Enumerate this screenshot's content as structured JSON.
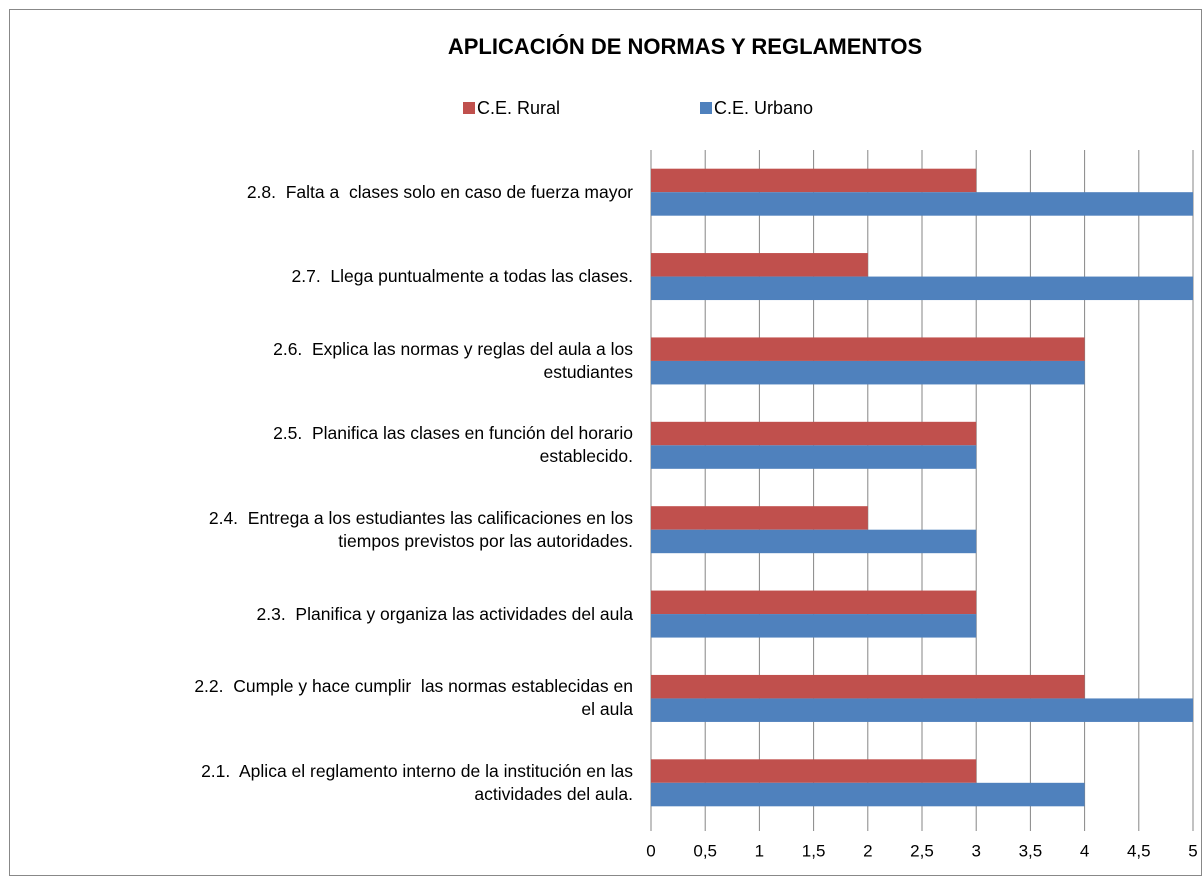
{
  "chart_data": {
    "type": "hbar",
    "title": "APLICACIÓN DE NORMAS Y REGLAMENTOS",
    "categories": [
      "2.1.  Aplica el reglamento interno de la institución en las actividades del aula.",
      "2.2.  Cumple y hace cumplir  las normas establecidas en el aula",
      "2.3.  Planifica y organiza las actividades del aula",
      "2.4.  Entrega a los estudiantes las calificaciones en los tiempos previstos por las autoridades.",
      "2.5.  Planifica las clases en función del horario establecido.",
      "2.6.  Explica las normas y reglas del aula a los estudiantes",
      "2.7.  Llega puntualmente a todas las clases.",
      "2.8.  Falta a  clases solo en caso de fuerza mayor"
    ],
    "series": [
      {
        "name": "C.E. Rural",
        "color": "#c0504d",
        "values": [
          3,
          4,
          3,
          2,
          3,
          4,
          2,
          3
        ]
      },
      {
        "name": "C.E. Urbano",
        "color": "#4f81bd",
        "values": [
          4,
          5,
          3,
          3,
          3,
          4,
          5,
          5
        ]
      }
    ],
    "xlim": [
      0,
      5
    ],
    "xticks": [
      0,
      {
        "value": 0.5,
        "label": "0,5"
      },
      1,
      {
        "value": 1.5,
        "label": "1,5"
      },
      2,
      {
        "value": 2.5,
        "label": "2,5"
      },
      3,
      {
        "value": 3.5,
        "label": "3,5"
      },
      4,
      {
        "value": 4.5,
        "label": "4,5"
      },
      5
    ],
    "grid": true,
    "legend": "top"
  }
}
